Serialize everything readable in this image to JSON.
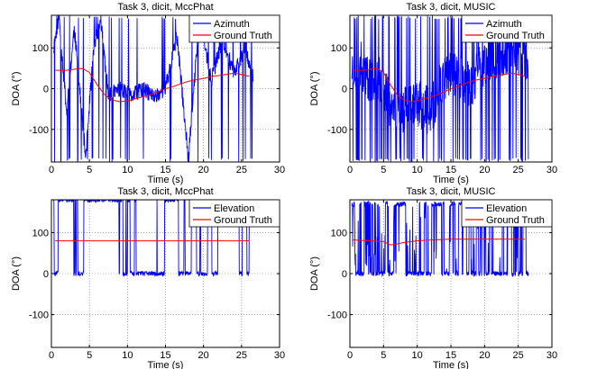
{
  "chart_data": [
    {
      "type": "line",
      "title": "Task 3, dicit, MccPhat",
      "xlabel": "Time (s)",
      "ylabel": "DOA (°)",
      "xlim": [
        0,
        30
      ],
      "ylim": [
        -180,
        180
      ],
      "xticks": [
        "0",
        "5",
        "10",
        "15",
        "20",
        "25",
        "30"
      ],
      "yticks": [
        "-100",
        "0",
        "100"
      ],
      "grid": true,
      "legend": "top-right",
      "series": [
        {
          "name": "Azimuth",
          "color": "#0000ff",
          "style": "noisy-jump",
          "seed": 11,
          "x": [
            0.3,
            1.0,
            2.0,
            3.0,
            4.5,
            5.5,
            6.5,
            7.5,
            9.0,
            10.5,
            12.0,
            13.5,
            15.0,
            16.5,
            18.0,
            19.5,
            21.0,
            22.5,
            24.0,
            25.5,
            26.5
          ],
          "y": [
            100,
            180,
            -60,
            150,
            -170,
            90,
            170,
            -20,
            0,
            -20,
            0,
            -20,
            0,
            130,
            -170,
            180,
            20,
            120,
            40,
            100,
            30
          ]
        },
        {
          "name": "Ground Truth",
          "color": "#ff0000",
          "style": "smooth",
          "x": [
            0.5,
            2,
            4,
            5,
            6,
            7,
            8,
            9,
            10,
            11,
            12,
            13,
            14,
            15,
            16,
            17,
            18,
            19,
            20,
            21,
            22,
            23,
            24,
            25,
            26
          ],
          "y": [
            45,
            45,
            50,
            40,
            10,
            -15,
            -28,
            -32,
            -30,
            -25,
            -20,
            -15,
            -8,
            0,
            5,
            12,
            18,
            22,
            25,
            30,
            32,
            35,
            38,
            35,
            30
          ]
        }
      ]
    },
    {
      "type": "line",
      "title": "Task 3, dicit, MUSIC",
      "xlabel": "Time (s)",
      "ylabel": "DOA (°)",
      "xlim": [
        0,
        30
      ],
      "ylim": [
        -180,
        180
      ],
      "xticks": [
        "0",
        "5",
        "10",
        "15",
        "20",
        "25",
        "30"
      ],
      "yticks": [
        "-100",
        "0",
        "100"
      ],
      "grid": true,
      "legend": "top-right",
      "series": [
        {
          "name": "Azimuth",
          "color": "#0000ff",
          "style": "noisy-dense",
          "seed": 23,
          "x": [
            0.3,
            1.5,
            3.0,
            4.5,
            6.0,
            7.5,
            9.0,
            10.5,
            12.0,
            13.5,
            15.0,
            16.5,
            18.0,
            19.5,
            21.0,
            22.5,
            24.0,
            25.5,
            26.5
          ],
          "y": [
            40,
            60,
            20,
            30,
            -40,
            -60,
            -30,
            -40,
            -60,
            20,
            40,
            20,
            10,
            60,
            80,
            90,
            100,
            80,
            60
          ]
        },
        {
          "name": "Ground Truth",
          "color": "#ff0000",
          "style": "smooth",
          "x": [
            0.5,
            2,
            4,
            5,
            6,
            7,
            8,
            9,
            10,
            11,
            12,
            13,
            14,
            15,
            16,
            17,
            18,
            19,
            20,
            21,
            22,
            23,
            24,
            25,
            26
          ],
          "y": [
            45,
            45,
            50,
            40,
            10,
            -15,
            -28,
            -32,
            -30,
            -25,
            -20,
            -15,
            -8,
            0,
            5,
            12,
            18,
            22,
            25,
            30,
            32,
            35,
            38,
            35,
            30
          ]
        }
      ]
    },
    {
      "type": "line",
      "title": "Task 3, dicit, MccPhat",
      "xlabel": "Time (s)",
      "ylabel": "DOA (°)",
      "xlim": [
        0,
        30
      ],
      "ylim": [
        -180,
        180
      ],
      "xticks": [
        "0",
        "5",
        "10",
        "15",
        "20",
        "25",
        "30"
      ],
      "yticks": [
        "-100",
        "0",
        "100"
      ],
      "grid": true,
      "legend": "top-right",
      "series": [
        {
          "name": "Elevation",
          "color": "#0000ff",
          "style": "binary-jump",
          "seed": 37,
          "levels": [
            0,
            180
          ],
          "x": [
            0.3,
            26.5
          ],
          "y": [
            0,
            180
          ]
        },
        {
          "name": "Ground Truth",
          "color": "#ff0000",
          "style": "smooth",
          "x": [
            0.5,
            5,
            10,
            15,
            20,
            25,
            26
          ],
          "y": [
            80,
            80,
            80,
            80,
            80,
            80,
            80
          ]
        }
      ]
    },
    {
      "type": "line",
      "title": "Task 3, dicit, MUSIC",
      "xlabel": "Time (s)",
      "ylabel": "DOA (°)",
      "xlim": [
        0,
        30
      ],
      "ylim": [
        -180,
        180
      ],
      "xticks": [
        "0",
        "5",
        "10",
        "15",
        "20",
        "25",
        "30"
      ],
      "yticks": [
        "-100",
        "0",
        "100"
      ],
      "grid": true,
      "legend": "top-right",
      "series": [
        {
          "name": "Elevation",
          "color": "#0000ff",
          "style": "band-jump",
          "seed": 53,
          "levels": [
            0,
            170
          ],
          "x": [
            0.3,
            26.5
          ],
          "y": [
            0,
            170
          ]
        },
        {
          "name": "Ground Truth",
          "color": "#ff0000",
          "style": "smooth",
          "x": [
            0.5,
            3,
            5,
            6,
            7,
            8,
            9,
            10,
            12,
            15,
            20,
            25,
            26
          ],
          "y": [
            82,
            80,
            78,
            70,
            72,
            76,
            78,
            80,
            82,
            84,
            84,
            84,
            84
          ]
        }
      ]
    }
  ]
}
